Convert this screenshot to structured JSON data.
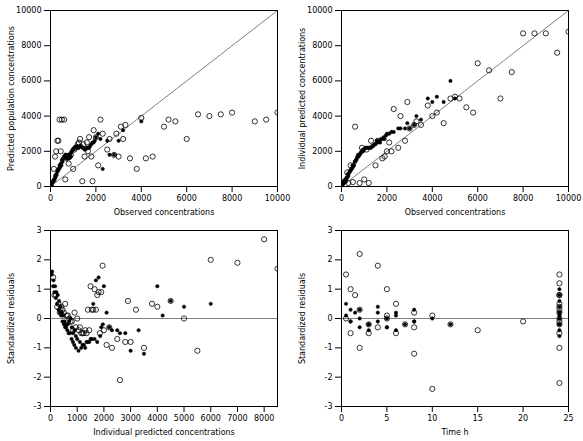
{
  "chart_data": [
    {
      "type": "scatter",
      "x_label": "Observed concentrations",
      "y_label": "Predicted population concentrations",
      "xlim": [
        0,
        10000
      ],
      "ylim": [
        0,
        10000
      ],
      "xticks": [
        0,
        2000,
        4000,
        6000,
        8000,
        10000
      ],
      "yticks": [
        0,
        2000,
        4000,
        6000,
        8000,
        10000
      ],
      "grid": false,
      "series": [
        {
          "marker": "open_circle",
          "color": "#000000",
          "x": [
            200,
            300,
            400,
            500,
            600,
            700,
            800,
            900,
            1000,
            1100,
            1200,
            1300,
            1400,
            1500,
            1600,
            1700,
            1800,
            1900,
            2000,
            2200,
            2500,
            2800,
            3000,
            3200,
            3500,
            4000,
            4500,
            5000,
            5500,
            6000,
            6500,
            7000,
            8000,
            9000,
            10000,
            150,
            250,
            350,
            450,
            650,
            850,
            1050,
            1250,
            1450,
            1650,
            1850,
            2100,
            2300,
            2600,
            2900,
            3100,
            3300,
            3800,
            4200,
            5200,
            7500,
            9500
          ],
          "values": [
            1700,
            2600,
            3800,
            3800,
            3800,
            1600,
            1300,
            1800,
            1000,
            2200,
            2400,
            2700,
            300,
            1700,
            2500,
            2800,
            1700,
            3200,
            2800,
            3800,
            2100,
            1800,
            1700,
            2700,
            1600,
            3900,
            1700,
            3400,
            3700,
            2700,
            4100,
            4000,
            4200,
            3700,
            4200,
            1000,
            2000,
            2600,
            2000,
            400,
            1700,
            2100,
            2500,
            2400,
            2000,
            300,
            1200,
            3000,
            2700,
            3000,
            3400,
            3500,
            1000,
            1600,
            3800,
            4100,
            3800
          ]
        },
        {
          "marker": "circle",
          "color": "#000000",
          "x": [
            50,
            100,
            150,
            200,
            250,
            300,
            350,
            400,
            450,
            500,
            550,
            600,
            650,
            700,
            750,
            800,
            850,
            900,
            950,
            1000,
            1100,
            1200,
            1300,
            1400,
            1500,
            1600,
            1700,
            1800,
            1900,
            2000,
            2200,
            2500,
            2800,
            3200,
            4000,
            60,
            110,
            170,
            220,
            270,
            320,
            380,
            420,
            480,
            530,
            580,
            620,
            680,
            730,
            780,
            830,
            880,
            930,
            980,
            1050,
            1150,
            1250,
            1350,
            1450,
            1550,
            1650,
            1750,
            1850,
            1950,
            2100,
            2300,
            2600,
            3000
          ],
          "values": [
            200,
            300,
            400,
            600,
            700,
            900,
            1000,
            1200,
            1300,
            1500,
            1600,
            1700,
            1800,
            1600,
            1600,
            1800,
            1700,
            1900,
            2000,
            2100,
            2200,
            2200,
            2300,
            2200,
            2100,
            2200,
            2200,
            2400,
            2500,
            2800,
            2700,
            2600,
            1800,
            3200,
            3700,
            100,
            250,
            350,
            500,
            650,
            850,
            1000,
            1100,
            1200,
            1400,
            1600,
            1700,
            1800,
            1600,
            1800,
            1600,
            1700,
            2000,
            2100,
            2200,
            2300,
            2200,
            2300,
            2200,
            2100,
            2200,
            2300,
            2500,
            2600,
            3000,
            1000,
            1800,
            2600
          ]
        }
      ],
      "lines": [
        {
          "x": [
            0,
            10000
          ],
          "values": [
            0,
            10000
          ],
          "color": "#808080"
        }
      ]
    },
    {
      "type": "scatter",
      "x_label": "Observed concentrations",
      "y_label": "Individual predicted concentrations",
      "xlim": [
        0,
        10000
      ],
      "ylim": [
        0,
        10000
      ],
      "xticks": [
        0,
        2000,
        4000,
        6000,
        8000,
        10000
      ],
      "yticks": [
        0,
        2000,
        4000,
        6000,
        8000,
        10000
      ],
      "grid": false,
      "series": [
        {
          "marker": "open_circle",
          "color": "#000000",
          "x": [
            300,
            500,
            800,
            1000,
            1200,
            1500,
            1800,
            2000,
            2200,
            2500,
            2800,
            3000,
            3200,
            3500,
            4000,
            4200,
            4500,
            5000,
            5200,
            5500,
            6000,
            6500,
            7000,
            7500,
            8000,
            8500,
            9000,
            9500,
            10000,
            150,
            250,
            400,
            600,
            900,
            1100,
            1300,
            1600,
            1900,
            2100,
            2300,
            2600,
            2900,
            3300,
            3800,
            4800,
            5800
          ],
          "values": [
            200,
            250,
            200,
            400,
            200,
            1200,
            1600,
            2000,
            2000,
            2200,
            2600,
            3300,
            3500,
            3500,
            4000,
            4200,
            3600,
            5100,
            5000,
            4500,
            7000,
            6600,
            5000,
            6500,
            8700,
            8700,
            8700,
            7600,
            8800,
            300,
            800,
            1200,
            3400,
            2200,
            2100,
            2600,
            2600,
            1700,
            2500,
            4400,
            4000,
            4800,
            3700,
            4600,
            5000,
            4200
          ]
        },
        {
          "marker": "circle",
          "color": "#000000",
          "x": [
            50,
            100,
            150,
            200,
            250,
            300,
            350,
            400,
            450,
            500,
            550,
            600,
            650,
            700,
            750,
            800,
            850,
            900,
            950,
            1000,
            1100,
            1200,
            1300,
            1400,
            1500,
            1600,
            1700,
            1800,
            1900,
            2000,
            2200,
            2500,
            2800,
            3000,
            3200,
            3500,
            4000,
            4500,
            5000,
            60,
            110,
            170,
            220,
            270,
            320,
            380,
            430,
            480,
            530,
            580,
            630,
            680,
            730,
            790,
            840,
            890,
            950,
            1050,
            1150,
            1250,
            1350,
            1450,
            1550,
            1650,
            1750,
            1860,
            1960,
            2100,
            2300,
            2600,
            2900,
            3300,
            3800,
            4200,
            4800
          ],
          "values": [
            100,
            200,
            250,
            400,
            500,
            600,
            800,
            900,
            1000,
            1100,
            1200,
            1400,
            1500,
            1700,
            1700,
            1800,
            1900,
            2000,
            2000,
            2100,
            2200,
            2200,
            2200,
            2300,
            2400,
            2500,
            2500,
            2700,
            2700,
            3000,
            3100,
            3300,
            3300,
            3300,
            3500,
            3800,
            4800,
            4800,
            5000,
            150,
            300,
            400,
            500,
            700,
            750,
            900,
            1000,
            1200,
            1200,
            1400,
            1500,
            1600,
            1800,
            1800,
            1900,
            2000,
            2100,
            2200,
            2200,
            2200,
            2300,
            2400,
            2600,
            2600,
            2700,
            2800,
            2900,
            3000,
            3100,
            3300,
            3600,
            4000,
            5000,
            5100,
            6000
          ]
        }
      ],
      "lines": [
        {
          "x": [
            0,
            10000
          ],
          "values": [
            0,
            10000
          ],
          "color": "#808080"
        }
      ]
    },
    {
      "type": "scatter",
      "x_label": "Individual predicted concentrations",
      "y_label": "Standardized residuals",
      "xlim": [
        0,
        8500
      ],
      "ylim": [
        -3,
        3
      ],
      "xticks": [
        0,
        1000,
        2000,
        3000,
        4000,
        5000,
        6000,
        7000,
        8000
      ],
      "yticks": [
        -3,
        -2,
        -1,
        0,
        1,
        2,
        3
      ],
      "grid": false,
      "series": [
        {
          "marker": "open_circle",
          "color": "#000000",
          "x": [
            100,
            200,
            300,
            400,
            500,
            600,
            700,
            800,
            900,
            1000,
            1100,
            1200,
            1300,
            1400,
            1500,
            1600,
            1700,
            1800,
            1900,
            2000,
            2200,
            2500,
            2800,
            3000,
            3500,
            4000,
            4500,
            5000,
            5500,
            6000,
            7000,
            8000,
            8500,
            150,
            250,
            350,
            450,
            550,
            650,
            750,
            850,
            950,
            1050,
            1150,
            1250,
            1350,
            1450,
            1550,
            1650,
            1750,
            1850,
            1950,
            2100,
            2300,
            2600,
            2900,
            3200,
            3800
          ],
          "values": [
            1.4,
            0.8,
            0.5,
            0.4,
            0.2,
            0.1,
            0.0,
            -0.1,
            0.2,
            0.0,
            -0.3,
            -0.5,
            -0.4,
            0.3,
            1.1,
            0.3,
            0.3,
            0.9,
            0.9,
            -0.4,
            -0.3,
            -0.7,
            -0.8,
            -0.8,
            -1.0,
            0.4,
            0.6,
            0.0,
            -1.1,
            2.0,
            1.9,
            2.7,
            1.7,
            0.8,
            0.4,
            0.2,
            0.3,
            0.5,
            0.1,
            -0.1,
            -0.4,
            -0.3,
            -0.4,
            -0.5,
            -0.5,
            -0.5,
            -0.4,
            0.3,
            1.0,
            0.8,
            -0.5,
            1.8,
            -0.9,
            -1.0,
            -2.1,
            0.6,
            0.3,
            0.5
          ]
        },
        {
          "marker": "circle",
          "color": "#000000",
          "x": [
            50,
            100,
            150,
            200,
            250,
            300,
            350,
            400,
            450,
            500,
            550,
            600,
            650,
            700,
            750,
            800,
            850,
            900,
            950,
            1000,
            1100,
            1200,
            1300,
            1400,
            1500,
            1600,
            1700,
            1800,
            1900,
            2000,
            2200,
            2500,
            2800,
            3000,
            3500,
            4000,
            4500,
            5000,
            6000,
            60,
            110,
            170,
            220,
            270,
            320,
            380,
            430,
            480,
            530,
            580,
            630,
            680,
            730,
            790,
            840,
            890,
            950,
            1050,
            1150,
            1250,
            1350,
            1450,
            1550,
            1650,
            1750,
            1860,
            1960,
            2100,
            2300,
            2600,
            3300,
            4200
          ],
          "values": [
            1.5,
            1.1,
            0.9,
            0.7,
            0.5,
            0.3,
            0.2,
            0.1,
            -0.1,
            -0.2,
            -0.3,
            -0.2,
            -0.2,
            -0.1,
            0.0,
            -0.3,
            -0.5,
            -0.4,
            -0.6,
            -0.7,
            -0.8,
            -0.9,
            -1.0,
            -0.8,
            -0.7,
            0.5,
            1.3,
            1.4,
            -0.3,
            1.1,
            -0.3,
            -0.4,
            -0.5,
            -1.1,
            -1.2,
            1.1,
            0.6,
            0.4,
            0.5,
            1.6,
            1.3,
            1.1,
            0.9,
            0.8,
            0.6,
            0.4,
            0.2,
            0.1,
            -0.1,
            -0.3,
            -0.4,
            -0.5,
            -0.5,
            -0.7,
            -0.8,
            -0.9,
            -1.0,
            -1.1,
            -1.0,
            -0.9,
            -0.8,
            -0.8,
            -0.7,
            -0.7,
            -0.8,
            -0.6,
            -0.2,
            0.2,
            -0.4,
            -0.5,
            -0.4,
            0.1
          ]
        }
      ],
      "hline": {
        "value": 0,
        "color": "#808080"
      }
    },
    {
      "type": "scatter",
      "x_label": "Time h",
      "y_label": "Standardized residuals",
      "xlim": [
        0,
        25
      ],
      "ylim": [
        -3,
        3
      ],
      "xticks": [
        0,
        5,
        10,
        15,
        20,
        25
      ],
      "yticks": [
        -3,
        -2,
        -1,
        0,
        1,
        2,
        3
      ],
      "grid": false,
      "series": [
        {
          "marker": "open_circle",
          "color": "#000000",
          "x": [
            0.5,
            1.0,
            1.5,
            2.0,
            3.0,
            4.0,
            5.0,
            6.0,
            7.0,
            8.0,
            10.0,
            12.0,
            15.0,
            20.0,
            24.0,
            24.0,
            24.0,
            24.0,
            24.0,
            24.0,
            24.0,
            24.0,
            24.0,
            24.0,
            2.0,
            4.0,
            5.0,
            6.0,
            8.0,
            10.0,
            24.0,
            0.5,
            1.0,
            2.0,
            3.0,
            5.0,
            8.0,
            24.0,
            24.0,
            24.0
          ],
          "values": [
            1.5,
            1.0,
            0.8,
            0.3,
            -0.2,
            -0.3,
            0.1,
            -0.5,
            -0.2,
            -0.3,
            0.1,
            -0.2,
            -0.4,
            -0.1,
            0.0,
            0.3,
            -0.2,
            -0.5,
            -1.0,
            -2.2,
            -0.1,
            0.2,
            0.5,
            0.8,
            2.2,
            1.8,
            1.0,
            0.5,
            -1.2,
            -2.4,
            1.5,
            0.0,
            -0.5,
            -1.0,
            -0.5,
            0.0,
            0.2,
            0.4,
            0.8,
            1.2
          ]
        },
        {
          "marker": "circle",
          "color": "#000000",
          "x": [
            0.5,
            0.5,
            1.0,
            1.0,
            1.5,
            2.0,
            2.0,
            3.0,
            3.0,
            4.0,
            4.0,
            5.0,
            5.0,
            6.0,
            6.0,
            7.0,
            8.0,
            8.0,
            10.0,
            12.0,
            24.0,
            24.0,
            24.0,
            24.0,
            24.0,
            24.0,
            24.0,
            24.0,
            24.0,
            24.0,
            24.0,
            1.0,
            2.0,
            3.0,
            4.0,
            5.0,
            6.0,
            8.0,
            24.0
          ],
          "values": [
            0.1,
            0.5,
            0.3,
            -0.1,
            0.2,
            0.0,
            -0.3,
            -0.2,
            -0.4,
            -0.1,
            0.2,
            0.0,
            -0.3,
            -0.4,
            0.1,
            -0.2,
            -0.1,
            0.3,
            0.0,
            -0.2,
            0.0,
            0.2,
            0.4,
            0.6,
            -0.2,
            -0.4,
            0.8,
            1.0,
            -0.6,
            0.2,
            -0.2,
            -0.1,
            0.3,
            -0.2,
            0.4,
            -0.3,
            0.2,
            -0.1,
            0.1
          ]
        }
      ],
      "hline": {
        "value": 0,
        "color": "#808080"
      }
    }
  ]
}
